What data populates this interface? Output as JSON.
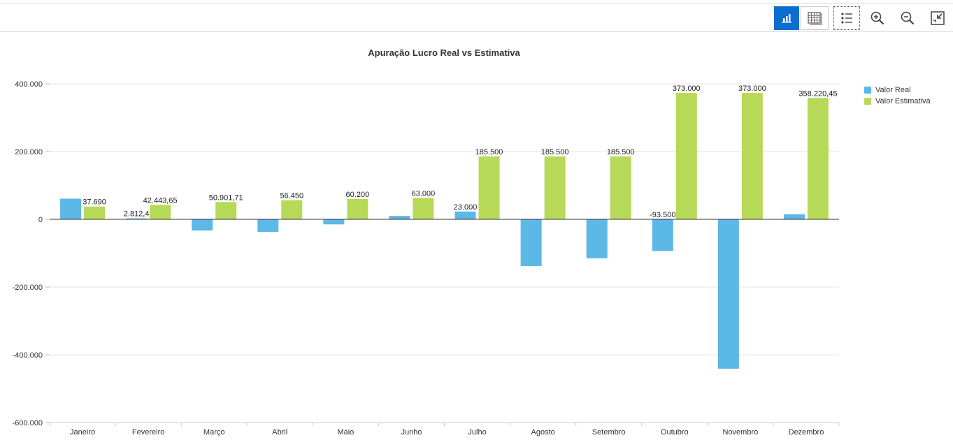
{
  "toolbar": {
    "items": [
      {
        "name": "chart-view",
        "icon": "bar-chart-icon",
        "active": true
      },
      {
        "name": "table-view",
        "icon": "table-icon"
      },
      {
        "name": "legend-toggle",
        "icon": "legend-icon"
      },
      {
        "name": "zoom-in",
        "icon": "zoom-in-icon"
      },
      {
        "name": "zoom-out",
        "icon": "zoom-out-icon"
      },
      {
        "name": "fit-screen",
        "icon": "fit-screen-icon"
      }
    ]
  },
  "chart_data": {
    "type": "bar",
    "title": "Apuração Lucro Real vs Estimativa",
    "categories": [
      "Janeiro",
      "Fevereiro",
      "Março",
      "Abril",
      "Maio",
      "Junho",
      "Julho",
      "Agosto",
      "Setembro",
      "Outubro",
      "Novembro",
      "Dezembro"
    ],
    "series": [
      {
        "name": "Valor Real",
        "color": "#5cb8e6",
        "values": [
          61000,
          2812.4,
          -33000,
          -37000,
          -15000,
          10000,
          23000,
          -138000,
          -115000,
          -93500,
          -441000,
          15000
        ],
        "labels": [
          "",
          "2.812,4",
          "",
          "",
          "",
          "",
          "23.000",
          "",
          "",
          "-93.500",
          "",
          ""
        ]
      },
      {
        "name": "Valor Estimativa",
        "color": "#b6d957",
        "values": [
          37690,
          42443.65,
          50901.71,
          56450,
          60200,
          63000,
          185500,
          185500,
          185500,
          373000,
          373000,
          358220.45
        ],
        "labels": [
          "37.690",
          "42.443,65",
          "50.901,71",
          "56.450",
          "60.200",
          "63.000",
          "185.500",
          "185.500",
          "185.500",
          "373.000",
          "373.000",
          "358.220,45"
        ]
      }
    ],
    "ylim": [
      -600000,
      400000
    ],
    "yticks": [
      400000,
      200000,
      0,
      -200000,
      -400000,
      -600000
    ],
    "ytick_labels": [
      "400.000",
      "200.000",
      "0",
      "-200.000",
      "-400.000",
      "-600.000"
    ],
    "grid": true,
    "legend_position": "right"
  }
}
